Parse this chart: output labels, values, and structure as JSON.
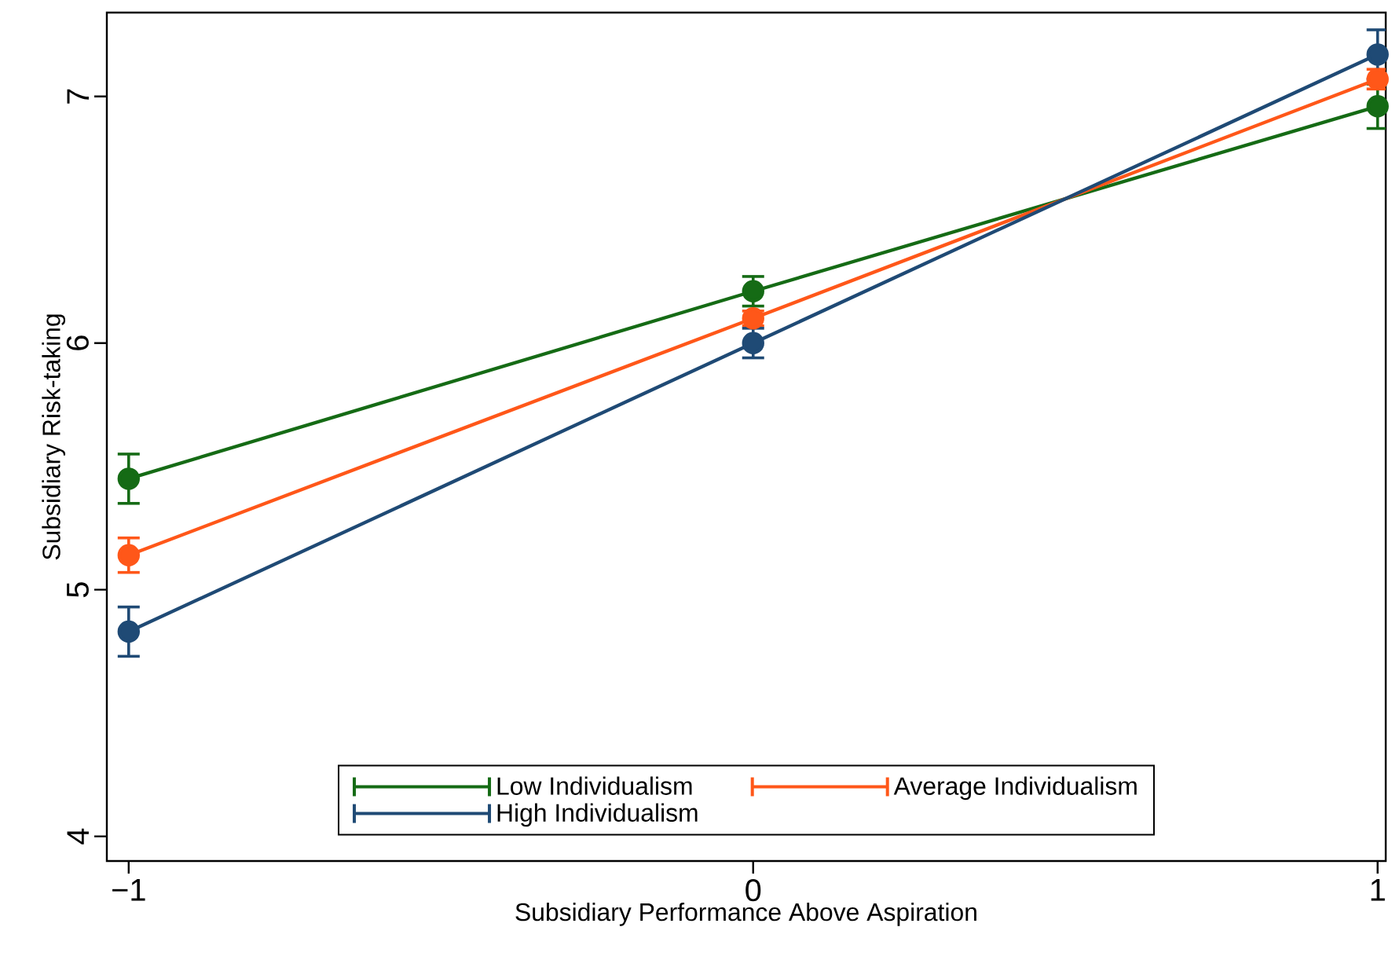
{
  "chart_data": {
    "type": "line",
    "xlabel": "Subsidiary Performance Above Aspiration",
    "ylabel": "Subsidiary Risk-taking",
    "x": [
      -1,
      0,
      1
    ],
    "xlim": [
      -1.035,
      1.013
    ],
    "xticks": [
      {
        "value": -1,
        "label": "−1"
      },
      0,
      1
    ],
    "ylim": [
      3.9,
      7.34
    ],
    "yticks": [
      4,
      5,
      6,
      7
    ],
    "marker": "circle",
    "legend": "bottom",
    "series": [
      {
        "name": "Low Individualism",
        "color": "#156b15",
        "values": [
          5.45,
          6.21,
          6.96
        ],
        "errors": [
          0.1,
          0.06,
          0.09
        ]
      },
      {
        "name": "Average Individualism",
        "color": "#ff5719",
        "values": [
          5.14,
          6.1,
          7.07
        ],
        "errors": [
          0.07,
          0.03,
          0.04
        ]
      },
      {
        "name": "High Individualism",
        "color": "#1f4a75",
        "values": [
          4.83,
          6.0,
          7.17
        ],
        "errors": [
          0.1,
          0.06,
          0.1
        ]
      }
    ]
  }
}
